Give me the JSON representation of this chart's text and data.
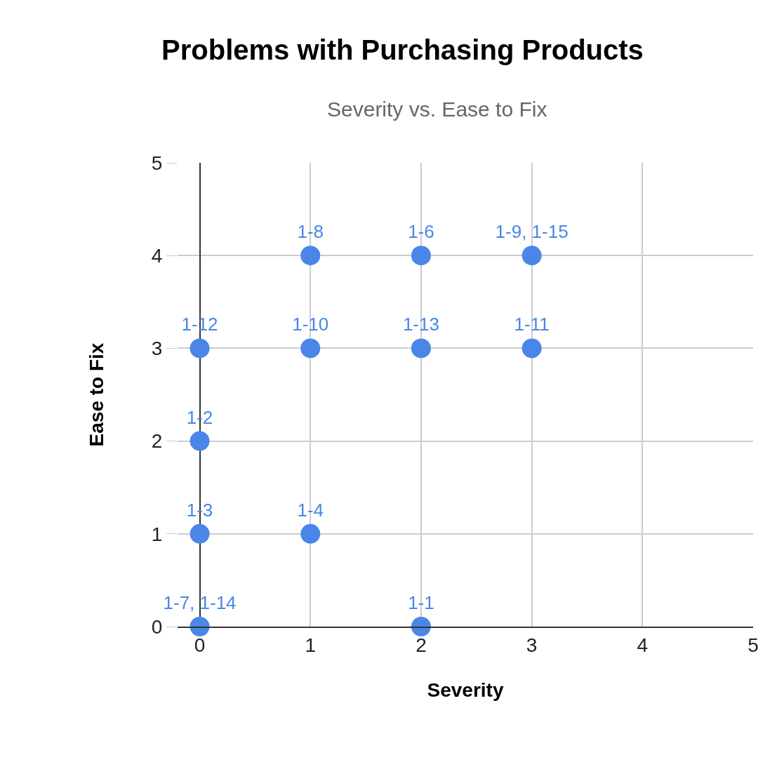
{
  "chart_data": {
    "type": "scatter",
    "title": "Problems with Purchasing Products",
    "subtitle": "Severity vs. Ease to Fix",
    "xlabel": "Severity",
    "ylabel": "Ease to Fix",
    "x": [
      0,
      2,
      0,
      1,
      0,
      0,
      1,
      2,
      3,
      1,
      2,
      3
    ],
    "series": [
      {
        "color": "#4a86e8",
        "values": [
          0,
          0,
          1,
          1,
          2,
          3,
          3,
          3,
          3,
          4,
          4,
          4
        ],
        "value_labels": [
          "1-7, 1-14",
          "1-1",
          "1-3",
          "1-4",
          "1-2",
          "1-12",
          "1-10",
          "1-13",
          "1-11",
          "1-8",
          "1-6",
          "1-9, 1-15"
        ]
      }
    ],
    "xlim": [
      -0.2,
      5
    ],
    "xticks": [
      0,
      1,
      2,
      3,
      4,
      5
    ],
    "ylim": [
      0,
      5
    ],
    "yticks": [
      0,
      1,
      2,
      3,
      4,
      5
    ],
    "grid": true,
    "marker": "circle"
  }
}
